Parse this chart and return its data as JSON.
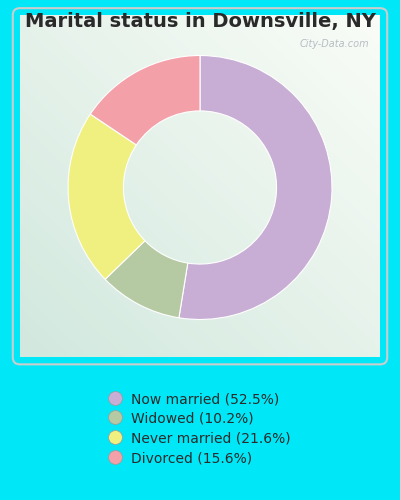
{
  "title": "Marital status in Downsville, NY",
  "slices": [
    52.5,
    10.2,
    21.6,
    15.6
  ],
  "labels": [
    "Now married (52.5%)",
    "Widowed (10.2%)",
    "Never married (21.6%)",
    "Divorced (15.6%)"
  ],
  "colors": [
    "#c8aed4",
    "#b5c9a2",
    "#f0f080",
    "#f4a0a8"
  ],
  "legend_colors": [
    "#c8aed4",
    "#b5c9a2",
    "#f0f080",
    "#f4a0a8"
  ],
  "outer_background": "#00e8f8",
  "title_fontsize": 14,
  "title_color": "#2a2a2a",
  "watermark": "City-Data.com",
  "donut_width": 0.42,
  "startangle": 90
}
